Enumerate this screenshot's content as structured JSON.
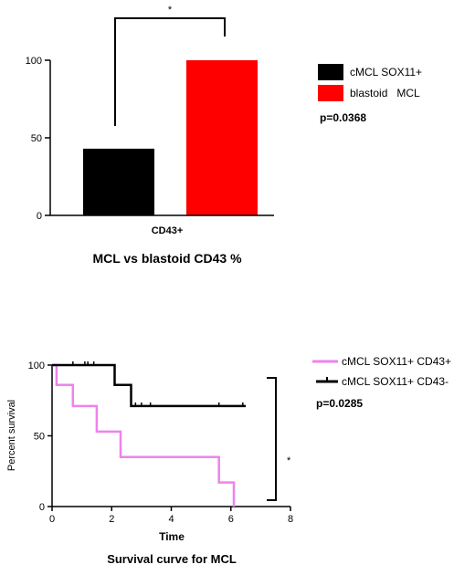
{
  "chart_data": [
    {
      "type": "bar",
      "categories": [
        "CD43+"
      ],
      "series": [
        {
          "name": "cMCL SOX11+",
          "values": [
            43
          ],
          "color": "#000000"
        },
        {
          "name": "blastoid   MCL",
          "values": [
            100
          ],
          "color": "#ff0000"
        }
      ],
      "ylim": [
        0,
        100
      ],
      "yticks": [
        0,
        50,
        100
      ],
      "title": "MCL vs blastoid CD43 %",
      "xlabel": "",
      "ylabel": "",
      "annotations": {
        "star": "*",
        "pvalue": "p=0.0368"
      },
      "legend_position": "right"
    },
    {
      "type": "line",
      "step": true,
      "xlim": [
        0,
        8
      ],
      "ylim": [
        0,
        100
      ],
      "xticks": [
        0,
        2,
        4,
        6,
        8
      ],
      "yticks": [
        0,
        50,
        100
      ],
      "title": "Survival curve for MCL",
      "xlabel": "Time",
      "ylabel": "Percent survival",
      "series": [
        {
          "name": "cMCL SOX11+ CD43+",
          "color": "#ee82ee",
          "points": [
            [
              0,
              100
            ],
            [
              0.15,
              100
            ],
            [
              0.15,
              86
            ],
            [
              0.7,
              86
            ],
            [
              0.7,
              71
            ],
            [
              1.5,
              71
            ],
            [
              1.5,
              53
            ],
            [
              2.3,
              53
            ],
            [
              2.3,
              35
            ],
            [
              5.6,
              35
            ],
            [
              5.6,
              17
            ],
            [
              6.1,
              17
            ],
            [
              6.1,
              0
            ]
          ],
          "censored": []
        },
        {
          "name": "cMCL SOX11+ CD43-",
          "color": "#000000",
          "points": [
            [
              0,
              100
            ],
            [
              2.1,
              100
            ],
            [
              2.1,
              86
            ],
            [
              2.65,
              86
            ],
            [
              2.65,
              71
            ],
            [
              6.5,
              71
            ]
          ],
          "censored": [
            0.7,
            1.1,
            1.2,
            1.4,
            2.8,
            3.0,
            3.3,
            5.6,
            6.4
          ]
        }
      ],
      "annotations": {
        "star": "*",
        "pvalue": "p=0.0285"
      },
      "legend_position": "top-right"
    }
  ]
}
